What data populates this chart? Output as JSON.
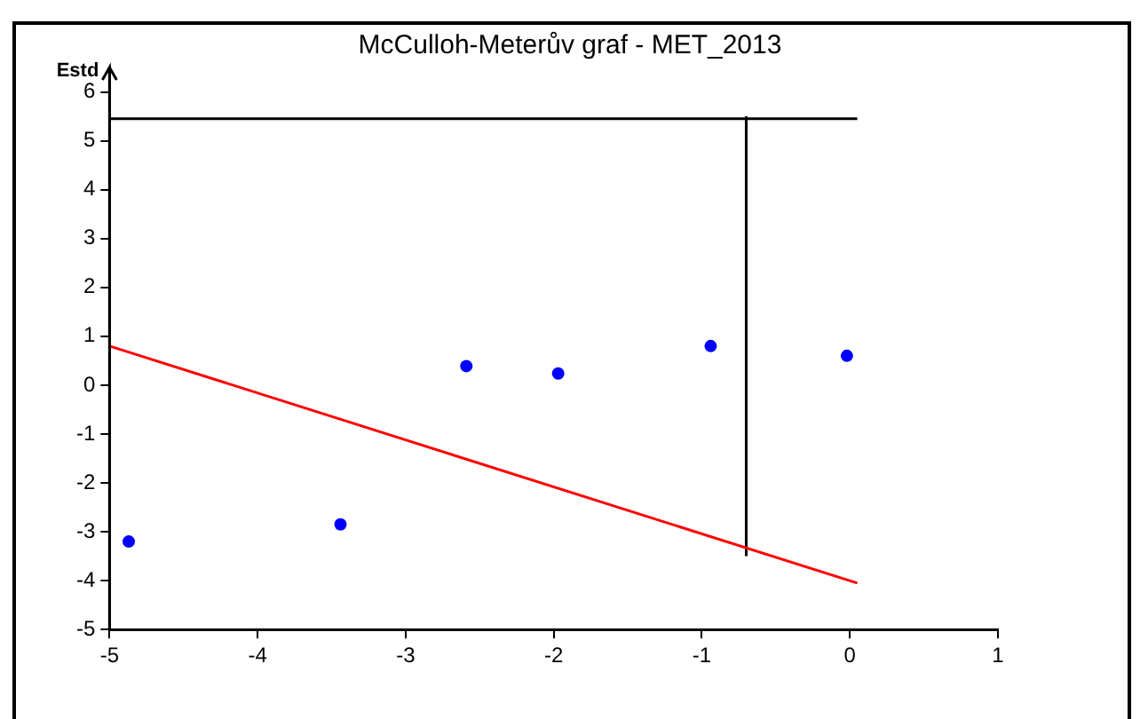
{
  "chart_data": {
    "type": "scatter",
    "title": "McCulloh-Meterův graf - MET_2013",
    "ylabel": "Estd",
    "xlim": [
      -5,
      1
    ],
    "xticks": [
      -5,
      -4,
      -3,
      -2,
      -1,
      0,
      1
    ],
    "ylim": [
      -5,
      6.5
    ],
    "yticks": [
      -5,
      -4,
      -3,
      -2,
      -1,
      0,
      1,
      2,
      3,
      4,
      5,
      6
    ],
    "grid": false,
    "legend": false,
    "marker": "circle",
    "series": [
      {
        "type": "scatter",
        "color": "#0000ff",
        "x": [
          -4.87,
          -3.44,
          -2.59,
          -1.97,
          -0.94,
          -0.02
        ],
        "values": [
          -3.2,
          -2.85,
          0.39,
          0.24,
          0.8,
          0.6
        ]
      },
      {
        "type": "line",
        "color": "#ff0000",
        "marker": "none",
        "x": [
          -5,
          0.05
        ],
        "values": [
          0.8,
          -4.05
        ]
      },
      {
        "type": "line",
        "color": "#000000",
        "marker": "none",
        "x": [
          -5,
          0.05
        ],
        "values": [
          5.45,
          5.45
        ]
      },
      {
        "type": "line",
        "color": "#000000",
        "marker": "none",
        "x": [
          -0.7,
          -0.7
        ],
        "values": [
          -3.5,
          5.5
        ]
      }
    ]
  }
}
